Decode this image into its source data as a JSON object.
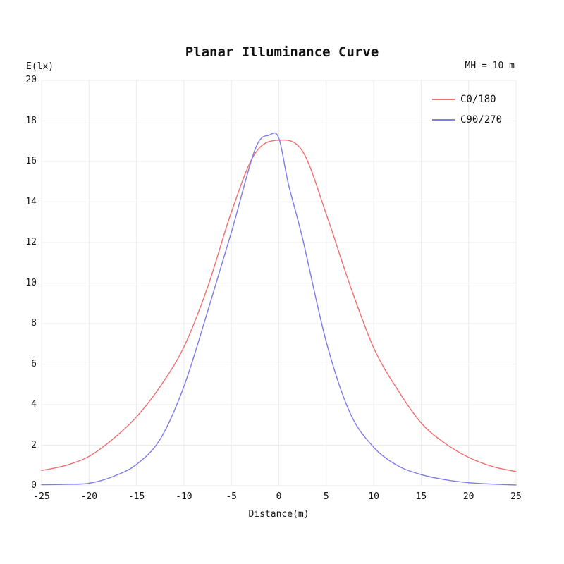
{
  "chart_data": {
    "type": "line",
    "title": "Planar Illuminance Curve",
    "y_axis_unit": "E(lx)",
    "xlabel": "Distance(m)",
    "annotation": "MH = 10 m",
    "xlim": [
      -25,
      25
    ],
    "ylim": [
      0,
      20
    ],
    "x_ticks": [
      -25,
      -20,
      -15,
      -10,
      -5,
      0,
      5,
      10,
      15,
      20,
      25
    ],
    "y_ticks": [
      0,
      2,
      4,
      6,
      8,
      10,
      12,
      14,
      16,
      18,
      20
    ],
    "grid": true,
    "grid_color": "#ebebeb",
    "legend_position": "top-right",
    "series": [
      {
        "name": "C0/180",
        "color": "#ee6f6f",
        "points": [
          [
            -25,
            0.75
          ],
          [
            -22.5,
            1.0
          ],
          [
            -20,
            1.45
          ],
          [
            -17.5,
            2.3
          ],
          [
            -15,
            3.4
          ],
          [
            -12.5,
            4.9
          ],
          [
            -10,
            6.85
          ],
          [
            -7.5,
            9.8
          ],
          [
            -5,
            13.5
          ],
          [
            -2.5,
            16.4
          ],
          [
            0,
            17.05
          ],
          [
            2.5,
            16.5
          ],
          [
            5,
            13.4
          ],
          [
            7.5,
            9.9
          ],
          [
            10,
            6.8
          ],
          [
            12.5,
            4.75
          ],
          [
            15,
            3.1
          ],
          [
            17.5,
            2.1
          ],
          [
            20,
            1.4
          ],
          [
            22.5,
            0.95
          ],
          [
            25,
            0.7
          ]
        ]
      },
      {
        "name": "C90/270",
        "color": "#7d7ce8",
        "points": [
          [
            -25,
            0.05
          ],
          [
            -22.5,
            0.07
          ],
          [
            -20,
            0.12
          ],
          [
            -17.5,
            0.45
          ],
          [
            -15,
            1.05
          ],
          [
            -12.5,
            2.3
          ],
          [
            -10,
            4.9
          ],
          [
            -7.5,
            8.6
          ],
          [
            -5,
            12.5
          ],
          [
            -2.5,
            16.6
          ],
          [
            -1,
            17.3
          ],
          [
            0,
            17.15
          ],
          [
            1,
            14.9
          ],
          [
            2.5,
            12.2
          ],
          [
            5,
            7.1
          ],
          [
            7.5,
            3.6
          ],
          [
            10,
            1.9
          ],
          [
            12.5,
            1.0
          ],
          [
            15,
            0.55
          ],
          [
            17.5,
            0.3
          ],
          [
            20,
            0.15
          ],
          [
            22.5,
            0.08
          ],
          [
            25,
            0.04
          ]
        ]
      }
    ]
  }
}
